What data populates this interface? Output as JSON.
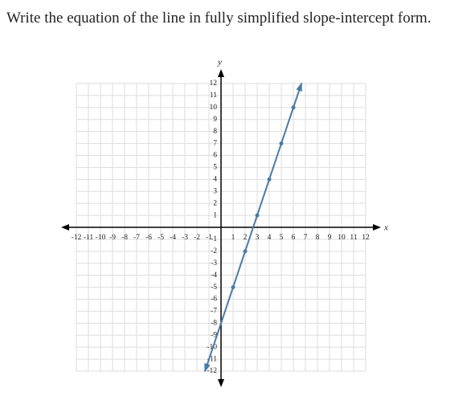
{
  "question": "Write the equation of the line in fully simplified slope-intercept form.",
  "chart_data": {
    "type": "line",
    "x_label": "x",
    "y_label": "y",
    "xlim": [
      -12,
      12
    ],
    "ylim": [
      -12,
      12
    ],
    "xticks": [
      -12,
      -11,
      -10,
      -9,
      -8,
      -7,
      -6,
      -5,
      -4,
      -3,
      -2,
      -1,
      1,
      2,
      3,
      4,
      5,
      6,
      7,
      8,
      9,
      10,
      11,
      12
    ],
    "yticks": [
      -12,
      -11,
      -10,
      -9,
      -8,
      -7,
      -6,
      -5,
      -4,
      -3,
      -2,
      -1,
      1,
      2,
      3,
      4,
      5,
      6,
      7,
      8,
      9,
      10,
      11,
      12
    ],
    "grid": true,
    "x": [
      -1.33,
      1,
      2,
      3,
      4,
      5,
      6,
      6.67
    ],
    "series": [
      {
        "color": "#4a7ba6",
        "values": [
          -12,
          -5,
          -2,
          1,
          4,
          7,
          10,
          12
        ]
      }
    ]
  }
}
